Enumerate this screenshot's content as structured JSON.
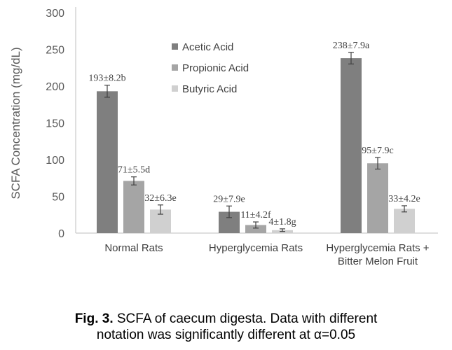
{
  "chart_data": {
    "type": "bar",
    "ylabel": "SCFA Concentration (mg/dL)",
    "ylim": [
      0,
      300
    ],
    "yticks": [
      "0",
      "50",
      "100",
      "150",
      "200",
      "250",
      "300"
    ],
    "categories": [
      [
        "Normal Rats"
      ],
      [
        "Hyperglycemia Rats"
      ],
      [
        "Hyperglycemia Rats +",
        "Bitter Melon Fruit"
      ]
    ],
    "series": [
      {
        "name": "Acetic Acid",
        "color": "#7f7f7f",
        "values": [
          193,
          29,
          238
        ],
        "errors": [
          8.2,
          7.9,
          7.9
        ],
        "labels": [
          "193±8.2b",
          "29±7.9e",
          "238±7.9a"
        ]
      },
      {
        "name": "Propionic Acid",
        "color": "#a5a5a5",
        "values": [
          71,
          11,
          95
        ],
        "errors": [
          5.5,
          4.2,
          7.9
        ],
        "labels": [
          "71±5.5d",
          "11±4.2f",
          "95±7.9c"
        ]
      },
      {
        "name": "Butyric Acid",
        "color": "#d0d0d0",
        "values": [
          32,
          4,
          33
        ],
        "errors": [
          6.3,
          1.8,
          4.2
        ],
        "labels": [
          "32±6.3e",
          "4±1.8g",
          "33±4.2e"
        ]
      }
    ],
    "legend_position": "top-center",
    "grid": false
  },
  "caption": {
    "prefix": "Fig. 3.",
    "line1": " SCFA of caecum digesta.  Data with different",
    "line2": "notation was significantly different at α=0.05"
  }
}
